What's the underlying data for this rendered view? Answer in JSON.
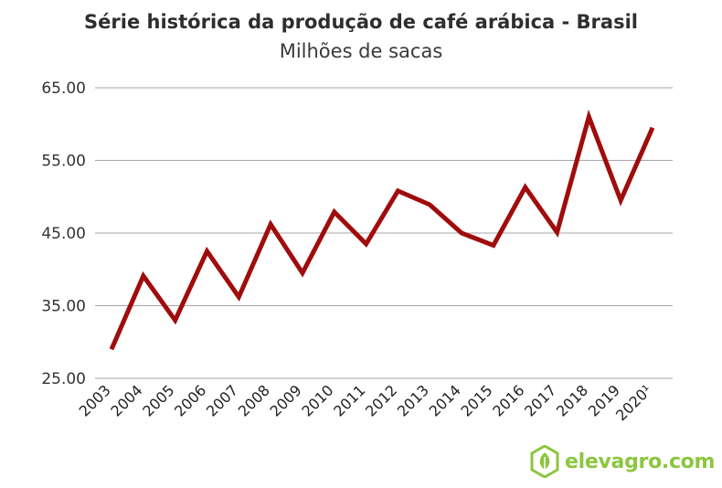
{
  "chart_data": {
    "type": "line",
    "title": "Série histórica da produção de café arábica - Brasil",
    "subtitle": "Milhões de sacas",
    "categories": [
      "2003",
      "2004",
      "2005",
      "2006",
      "2007",
      "2008",
      "2009",
      "2010",
      "2011",
      "2012",
      "2013",
      "2014",
      "2015",
      "2016",
      "2017",
      "2018",
      "2019",
      "2020¹"
    ],
    "series": [
      {
        "values": [
          29.0,
          39.1,
          33.0,
          42.5,
          36.2,
          46.2,
          39.5,
          47.9,
          43.5,
          50.8,
          48.9,
          45.0,
          43.3,
          51.3,
          45.1,
          61.0,
          49.5,
          59.5
        ]
      }
    ],
    "yticks": [
      "25.00",
      "35.00",
      "45.00",
      "55.00",
      "65.00"
    ],
    "ylim": [
      25,
      65
    ],
    "grid": true,
    "line_color": "#a00c0c"
  },
  "branding": {
    "logo_text": "elevagro.com",
    "logo_icon": "leaf-hexagon-icon",
    "color": "#8cc63f"
  }
}
